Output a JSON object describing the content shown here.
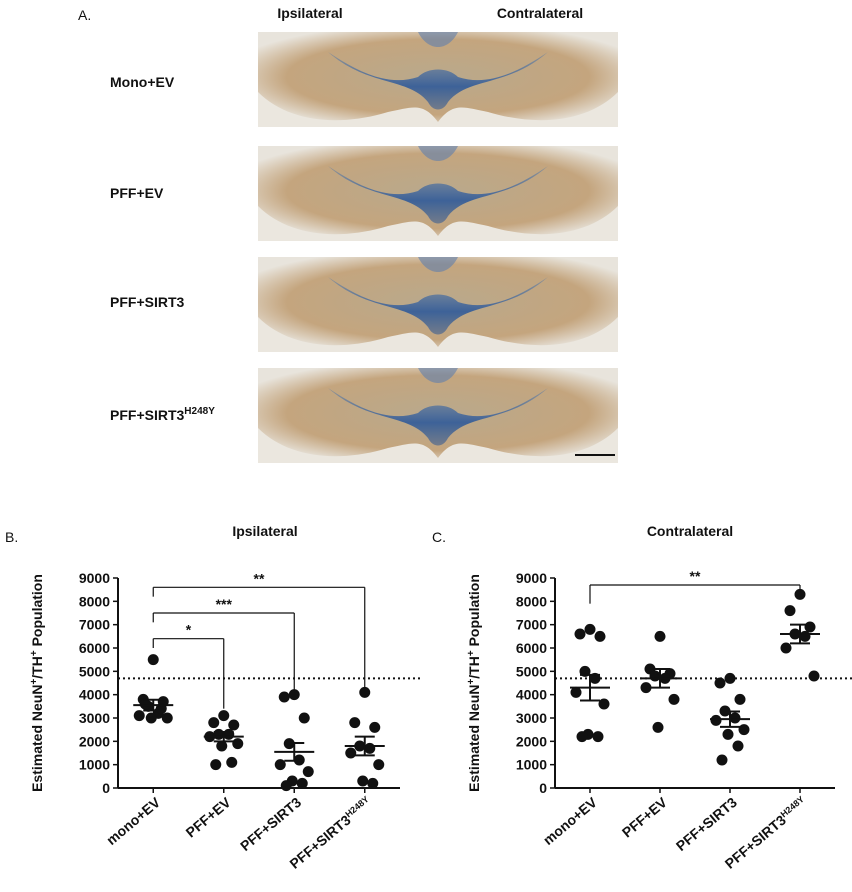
{
  "panel_a": {
    "label": "A.",
    "columns": [
      "Ipsilateral",
      "Contralateral"
    ],
    "rows": [
      {
        "text": "Mono+EV"
      },
      {
        "text": "PFF+EV"
      },
      {
        "text": "PFF+SIRT3"
      },
      {
        "text": "PFF+SIRT3",
        "sup": "H248Y"
      }
    ]
  },
  "chart_data": [
    {
      "type": "dot",
      "panel_label": "B.",
      "title": "Ipsilateral",
      "ylabel_parts": [
        {
          "text": "Estimated NeuN"
        },
        {
          "sup": "+"
        },
        {
          "text": "/TH"
        },
        {
          "sup": "+"
        },
        {
          "text": " Population"
        }
      ],
      "categories": [
        "mono+EV",
        "PFF+EV",
        "PFF+SIRT3",
        "PFF+SIRT3"
      ],
      "category_sups": [
        null,
        null,
        null,
        "H248Y"
      ],
      "points": [
        [
          5500,
          3800,
          3700,
          3500,
          3200,
          3100,
          3000,
          3000,
          3400,
          3600
        ],
        [
          3100,
          2800,
          2700,
          2300,
          2300,
          2200,
          1900,
          1800,
          1100,
          1000
        ],
        [
          4000,
          3900,
          3000,
          1900,
          1200,
          1000,
          700,
          300,
          200,
          100
        ],
        [
          4100,
          2800,
          2600,
          1800,
          1700,
          1500,
          1000,
          300,
          200
        ]
      ],
      "means": [
        3550,
        2200,
        1550,
        1800
      ],
      "sems": [
        230,
        200,
        380,
        400
      ],
      "reference_line": 4700,
      "brackets": [
        {
          "from": 0,
          "to": 1,
          "y": 6400,
          "left_end": 6000,
          "right_end": 3400,
          "label": "*"
        },
        {
          "from": 0,
          "to": 2,
          "y": 7500,
          "left_end": 7100,
          "right_end": 4200,
          "label": "***"
        },
        {
          "from": 0,
          "to": 3,
          "y": 8600,
          "left_end": 8200,
          "right_end": 4300,
          "label": "**"
        }
      ],
      "ylim": [
        0,
        9000
      ],
      "yticks": [
        0,
        1000,
        2000,
        3000,
        4000,
        5000,
        6000,
        7000,
        8000,
        9000
      ],
      "color": "#111111"
    },
    {
      "type": "dot",
      "panel_label": "C.",
      "title": "Contralateral",
      "ylabel_parts": [
        {
          "text": "Estimated NeuN"
        },
        {
          "sup": "+"
        },
        {
          "text": "/TH"
        },
        {
          "sup": "+"
        },
        {
          "text": " Population"
        }
      ],
      "categories": [
        "mono+EV",
        "PFF+EV",
        "PFF+SIRT3",
        "PFF+SIRT3"
      ],
      "category_sups": [
        null,
        null,
        null,
        "H248Y"
      ],
      "points": [
        [
          6800,
          6600,
          6500,
          5000,
          4700,
          4100,
          3600,
          2300,
          2200,
          2200
        ],
        [
          6500,
          5100,
          4900,
          4800,
          4700,
          4300,
          3800,
          2600
        ],
        [
          4700,
          4500,
          3800,
          3300,
          3000,
          2900,
          2500,
          2300,
          1800,
          1200
        ],
        [
          8300,
          7600,
          6900,
          6600,
          6500,
          6000,
          4800
        ]
      ],
      "means": [
        4300,
        4700,
        2950,
        6600
      ],
      "sems": [
        550,
        400,
        330,
        400
      ],
      "reference_line": 4700,
      "brackets": [
        {
          "from": 0,
          "to": 3,
          "y": 8700,
          "left_end": 7900,
          "right_end": 8400,
          "label": "**"
        }
      ],
      "ylim": [
        0,
        9000
      ],
      "yticks": [
        0,
        1000,
        2000,
        3000,
        4000,
        5000,
        6000,
        7000,
        8000,
        9000
      ],
      "color": "#111111"
    }
  ]
}
